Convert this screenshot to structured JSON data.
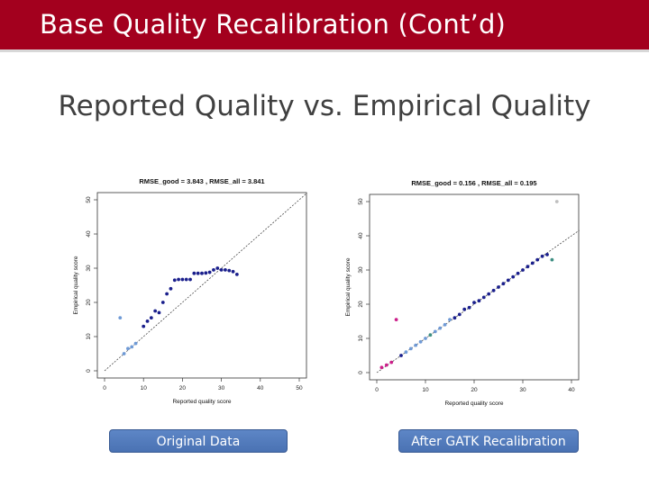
{
  "slide": {
    "title": "Base Quality Recalibration (Cont’d)",
    "subtitle": "Reported Quality vs. Empirical Quality"
  },
  "colors": {
    "header": "#a3001e",
    "point_dark": "#1a1f8c",
    "point_light": "#6f9ad6",
    "point_magenta": "#cc1f8a",
    "point_green": "#3f8f83",
    "point_gray": "#bfbfbf",
    "caption": "#5078bd"
  },
  "captions": {
    "left": "Original Data",
    "right": "After GATK Recalibration"
  },
  "chart_data": [
    {
      "type": "scatter",
      "title": "RMSE_good = 3.843 , RMSE_all = 3.841",
      "xlabel": "Reported quality score",
      "ylabel": "Empirical quality score",
      "xlim": [
        0,
        50
      ],
      "ylim": [
        0,
        50
      ],
      "xticks": [
        "0",
        "10",
        "20",
        "30",
        "40",
        "50"
      ],
      "yticks": [
        "0",
        "10",
        "20",
        "30",
        "40",
        "50"
      ],
      "reference_line": "y = x",
      "grid": false,
      "points": [
        {
          "x": 4,
          "y": 15.5,
          "color": "light"
        },
        {
          "x": 5,
          "y": 5,
          "color": "light"
        },
        {
          "x": 6,
          "y": 6.5,
          "color": "light"
        },
        {
          "x": 7,
          "y": 7,
          "color": "light"
        },
        {
          "x": 8,
          "y": 8,
          "color": "light"
        },
        {
          "x": 10,
          "y": 13,
          "color": "dark"
        },
        {
          "x": 11,
          "y": 14.5,
          "color": "dark"
        },
        {
          "x": 12,
          "y": 15.5,
          "color": "dark"
        },
        {
          "x": 13,
          "y": 17.5,
          "color": "dark"
        },
        {
          "x": 14,
          "y": 17,
          "color": "dark"
        },
        {
          "x": 15,
          "y": 20,
          "color": "dark"
        },
        {
          "x": 16,
          "y": 22.5,
          "color": "dark"
        },
        {
          "x": 17,
          "y": 24,
          "color": "dark"
        },
        {
          "x": 18,
          "y": 26.5,
          "color": "dark"
        },
        {
          "x": 19,
          "y": 26.7,
          "color": "dark"
        },
        {
          "x": 20,
          "y": 26.7,
          "color": "dark"
        },
        {
          "x": 21,
          "y": 26.7,
          "color": "dark"
        },
        {
          "x": 22,
          "y": 26.7,
          "color": "dark"
        },
        {
          "x": 23,
          "y": 28.5,
          "color": "dark"
        },
        {
          "x": 24,
          "y": 28.5,
          "color": "dark"
        },
        {
          "x": 25,
          "y": 28.5,
          "color": "dark"
        },
        {
          "x": 26,
          "y": 28.6,
          "color": "dark"
        },
        {
          "x": 27,
          "y": 28.8,
          "color": "dark"
        },
        {
          "x": 28,
          "y": 29.5,
          "color": "dark"
        },
        {
          "x": 29,
          "y": 30,
          "color": "dark"
        },
        {
          "x": 30,
          "y": 29.5,
          "color": "dark"
        },
        {
          "x": 31,
          "y": 29.5,
          "color": "dark"
        },
        {
          "x": 32,
          "y": 29.3,
          "color": "dark"
        },
        {
          "x": 33,
          "y": 29,
          "color": "dark"
        },
        {
          "x": 34,
          "y": 28.2,
          "color": "dark"
        }
      ]
    },
    {
      "type": "scatter",
      "title": "RMSE_good = 0.156 , RMSE_all = 0.195",
      "xlabel": "Reported quality score",
      "ylabel": "Empirical quality score",
      "xlim": [
        0,
        40
      ],
      "ylim": [
        0,
        50
      ],
      "xticks": [
        "0",
        "10",
        "20",
        "30",
        "40"
      ],
      "yticks": [
        "0",
        "10",
        "20",
        "30",
        "40",
        "50"
      ],
      "reference_line": "y = x",
      "grid": false,
      "points": [
        {
          "x": 1,
          "y": 1.5,
          "color": "magenta"
        },
        {
          "x": 2,
          "y": 2.2,
          "color": "magenta"
        },
        {
          "x": 3,
          "y": 3,
          "color": "magenta"
        },
        {
          "x": 4,
          "y": 15.5,
          "color": "magenta"
        },
        {
          "x": 5,
          "y": 5,
          "color": "dark"
        },
        {
          "x": 6,
          "y": 6,
          "color": "light"
        },
        {
          "x": 7,
          "y": 7,
          "color": "light"
        },
        {
          "x": 8,
          "y": 8,
          "color": "light"
        },
        {
          "x": 9,
          "y": 9,
          "color": "light"
        },
        {
          "x": 10,
          "y": 10,
          "color": "light"
        },
        {
          "x": 11,
          "y": 11,
          "color": "green"
        },
        {
          "x": 12,
          "y": 12,
          "color": "light"
        },
        {
          "x": 13,
          "y": 13,
          "color": "light"
        },
        {
          "x": 14,
          "y": 14,
          "color": "light"
        },
        {
          "x": 15,
          "y": 15.5,
          "color": "light"
        },
        {
          "x": 16,
          "y": 16,
          "color": "dark"
        },
        {
          "x": 17,
          "y": 17,
          "color": "dark"
        },
        {
          "x": 18,
          "y": 18.5,
          "color": "dark"
        },
        {
          "x": 19,
          "y": 19,
          "color": "dark"
        },
        {
          "x": 20,
          "y": 20.5,
          "color": "dark"
        },
        {
          "x": 21,
          "y": 21,
          "color": "dark"
        },
        {
          "x": 22,
          "y": 22,
          "color": "dark"
        },
        {
          "x": 23,
          "y": 23,
          "color": "dark"
        },
        {
          "x": 24,
          "y": 24,
          "color": "dark"
        },
        {
          "x": 25,
          "y": 25,
          "color": "dark"
        },
        {
          "x": 26,
          "y": 26,
          "color": "dark"
        },
        {
          "x": 27,
          "y": 27,
          "color": "dark"
        },
        {
          "x": 28,
          "y": 28,
          "color": "dark"
        },
        {
          "x": 29,
          "y": 29,
          "color": "dark"
        },
        {
          "x": 30,
          "y": 30,
          "color": "dark"
        },
        {
          "x": 31,
          "y": 31,
          "color": "dark"
        },
        {
          "x": 32,
          "y": 32,
          "color": "dark"
        },
        {
          "x": 33,
          "y": 33,
          "color": "dark"
        },
        {
          "x": 34,
          "y": 34,
          "color": "dark"
        },
        {
          "x": 35,
          "y": 34.5,
          "color": "dark"
        },
        {
          "x": 36,
          "y": 33,
          "color": "green"
        },
        {
          "x": 37,
          "y": 50,
          "color": "gray"
        }
      ]
    }
  ]
}
